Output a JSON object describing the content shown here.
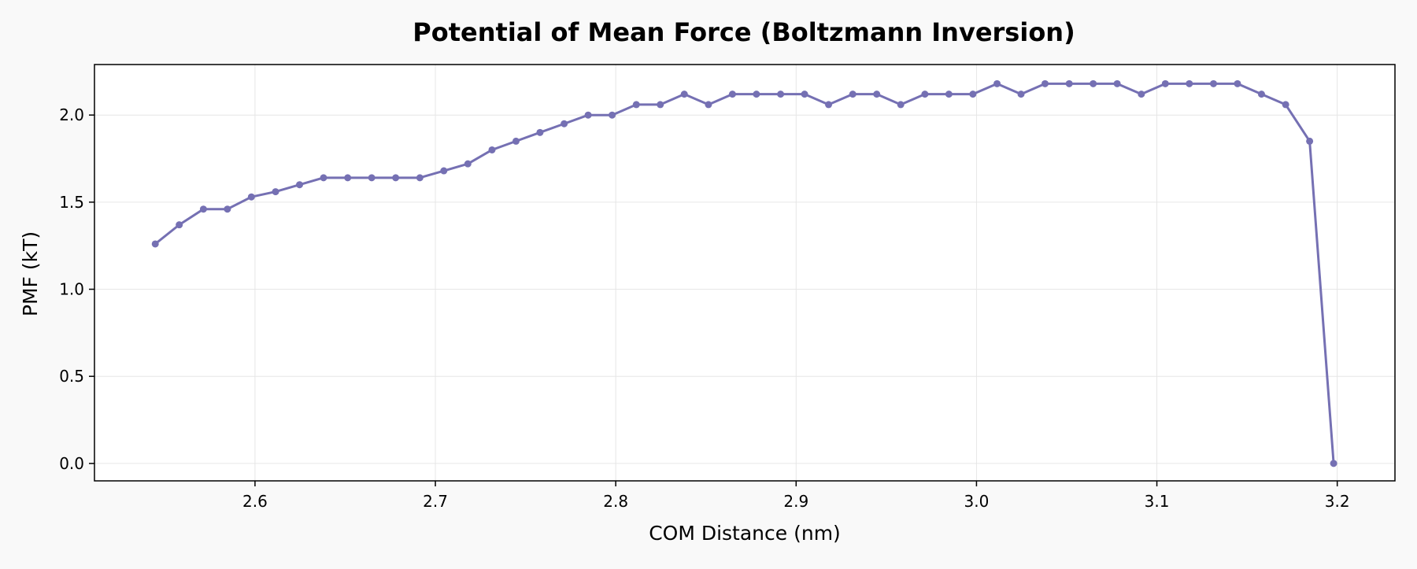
{
  "colors": {
    "background": "#f9f9f9",
    "plot_background": "#ffffff",
    "line": "#7570b3",
    "grid": "#e6e6e6",
    "axes": "#000000"
  },
  "chart_data": {
    "type": "line",
    "title": "Potential of Mean Force (Boltzmann Inversion)",
    "xlabel": "COM Distance (nm)",
    "ylabel": "PMF (kT)",
    "xlim": [
      2.511,
      3.232
    ],
    "ylim": [
      -0.1,
      2.29
    ],
    "xticks": [
      2.6,
      2.7,
      2.8,
      2.9,
      3.0,
      3.1,
      3.2
    ],
    "xtick_labels": [
      "2.6",
      "2.7",
      "2.8",
      "2.9",
      "3.0",
      "3.1",
      "3.2"
    ],
    "yticks": [
      0.0,
      0.5,
      1.0,
      1.5,
      2.0
    ],
    "ytick_labels": [
      "0.0",
      "0.5",
      "1.0",
      "1.5",
      "2.0"
    ],
    "grid": true,
    "markers": true,
    "series": [
      {
        "x": [
          2.5447,
          2.558,
          2.5714,
          2.5847,
          2.598,
          2.6114,
          2.6247,
          2.638,
          2.6514,
          2.6647,
          2.678,
          2.6914,
          2.7047,
          2.718,
          2.7314,
          2.7447,
          2.758,
          2.7714,
          2.7847,
          2.798,
          2.8114,
          2.8247,
          2.838,
          2.8514,
          2.8647,
          2.878,
          2.8914,
          2.9047,
          2.918,
          2.9314,
          2.9447,
          2.958,
          2.9714,
          2.9847,
          2.998,
          3.0114,
          3.0247,
          3.038,
          3.0514,
          3.0647,
          3.078,
          3.0914,
          3.1047,
          3.118,
          3.1314,
          3.1447,
          3.158,
          3.1714,
          3.1847,
          3.198
        ],
        "y": [
          1.26,
          1.37,
          1.46,
          1.46,
          1.53,
          1.56,
          1.6,
          1.64,
          1.64,
          1.64,
          1.64,
          1.64,
          1.68,
          1.72,
          1.8,
          1.85,
          1.9,
          1.95,
          2.0,
          2.0,
          2.06,
          2.06,
          2.12,
          2.06,
          2.12,
          2.12,
          2.12,
          2.12,
          2.06,
          2.12,
          2.12,
          2.06,
          2.12,
          2.12,
          2.12,
          2.18,
          2.12,
          2.18,
          2.18,
          2.18,
          2.18,
          2.12,
          2.18,
          2.18,
          2.18,
          2.18,
          2.12,
          2.06,
          1.85,
          0.0
        ]
      }
    ]
  }
}
